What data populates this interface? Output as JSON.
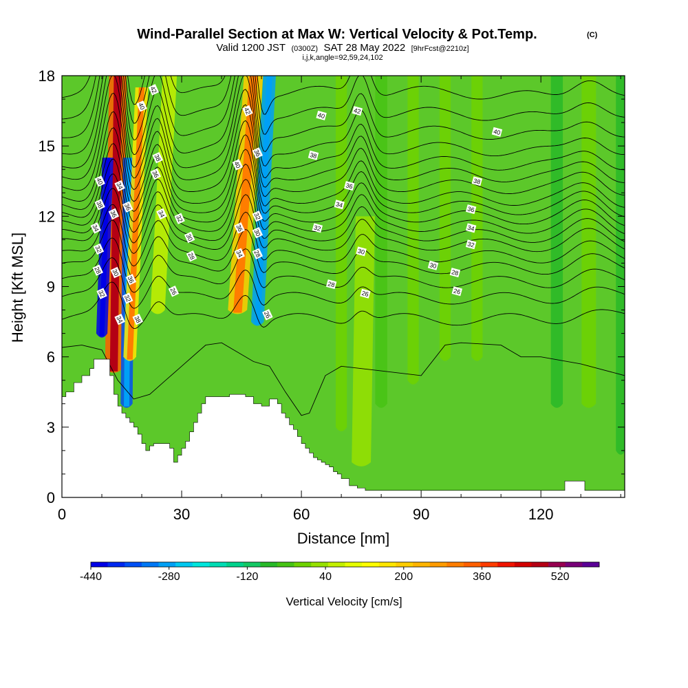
{
  "chart_data": {
    "type": "heatmap",
    "title": "Wind-Parallel Section at Max W: Vertical Velocity & Pot.Temp.",
    "title_mark": "(C)",
    "subtitle_valid": "Valid 1200 JST",
    "subtitle_utc": "(0300Z)",
    "subtitle_date": "SAT 28 May 2022",
    "subtitle_fcst": "[9hrFcst@2210z]",
    "subtitle_indices": "i,j,k,angle=92,59,24,102",
    "xlabel": "Distance [nm]",
    "ylabel": "Height [Kft MSL]",
    "xlim": [
      0,
      141
    ],
    "ylim": [
      0,
      18
    ],
    "x_ticks": [
      0,
      30,
      60,
      90,
      120
    ],
    "y_ticks": [
      0,
      3,
      6,
      9,
      12,
      15,
      18
    ],
    "x_tick_labels": [
      "0",
      "30",
      "60",
      "90",
      "120"
    ],
    "y_tick_labels": [
      "0",
      "3",
      "6",
      "9",
      "12",
      "15",
      "18"
    ],
    "colorbar": {
      "title": "Vertical Velocity [cm/s]",
      "labels": [
        "-440",
        "-280",
        "-120",
        "40",
        "200",
        "360",
        "520"
      ],
      "label_values": [
        -440,
        -280,
        -120,
        40,
        200,
        360,
        520
      ],
      "min": -440,
      "max": 600,
      "step": 40,
      "colors": [
        "#0000e6",
        "#0028f0",
        "#0050f5",
        "#0078f5",
        "#00a0f5",
        "#00c8f0",
        "#00e6dc",
        "#00dcb4",
        "#00d28c",
        "#14c864",
        "#28b928",
        "#46c314",
        "#6ed200",
        "#96e100",
        "#c3f000",
        "#e6ff00",
        "#ffff00",
        "#ffe600",
        "#ffcd00",
        "#ffb400",
        "#ff9b00",
        "#ff7d00",
        "#ff5f00",
        "#ff3c00",
        "#f01400",
        "#d20000",
        "#b40014",
        "#960050",
        "#780078",
        "#5a0096"
      ]
    },
    "terrain_profile": {
      "x": [
        0,
        1,
        3,
        5,
        7,
        8,
        10,
        12,
        13,
        14,
        15,
        16,
        17,
        18,
        19,
        20,
        21,
        22,
        23,
        24,
        25,
        26,
        27,
        28,
        29,
        30,
        31,
        32,
        33,
        34,
        35,
        36,
        40,
        42,
        44,
        46,
        48,
        50,
        52,
        54,
        55,
        56,
        57,
        58,
        59,
        60,
        61,
        62,
        63,
        64,
        65,
        66,
        67,
        68,
        69,
        70,
        72,
        74,
        76,
        78,
        80,
        82,
        84,
        86,
        88,
        90,
        92,
        94,
        96,
        98,
        100,
        102,
        105,
        110,
        115,
        120,
        125,
        126,
        130,
        131,
        135,
        141
      ],
      "y": [
        4.3,
        4.5,
        4.9,
        5.2,
        5.5,
        5.9,
        5.9,
        5.2,
        4.4,
        3.9,
        3.6,
        3.4,
        3.2,
        3.0,
        2.7,
        2.3,
        2.0,
        2.2,
        2.3,
        2.3,
        2.3,
        2.3,
        2.1,
        1.5,
        1.8,
        2.1,
        2.4,
        2.8,
        3.2,
        3.6,
        4.0,
        4.3,
        4.3,
        4.4,
        4.4,
        4.3,
        4.0,
        3.9,
        4.2,
        4.0,
        3.6,
        3.4,
        3.1,
        2.9,
        2.6,
        2.3,
        2.1,
        1.9,
        1.7,
        1.6,
        1.5,
        1.4,
        1.3,
        1.1,
        1.0,
        0.8,
        0.5,
        0.4,
        0.3,
        0.3,
        0.3,
        0.3,
        0.3,
        0.3,
        0.3,
        0.3,
        0.3,
        0.3,
        0.3,
        0.3,
        0.3,
        0.3,
        0.3,
        0.3,
        0.3,
        0.3,
        0.3,
        0.7,
        0.7,
        0.3,
        0.3,
        0.3
      ]
    },
    "vertical_velocity_features": [
      {
        "x_top": 14,
        "x_bottom": 13,
        "y_top": 18,
        "y_bottom": 5.5,
        "width": 2.2,
        "value": 440
      },
      {
        "x_top": 11.5,
        "x_bottom": 10,
        "y_top": 14.5,
        "y_bottom": 7,
        "width": 1.4,
        "value": -440
      },
      {
        "x_top": 16.8,
        "x_bottom": 16.2,
        "y_top": 14.5,
        "y_bottom": 4,
        "width": 1.5,
        "value": -360
      },
      {
        "x_top": 20,
        "x_bottom": 17,
        "y_top": 17.5,
        "y_bottom": 6,
        "width": 1.6,
        "value": 240
      },
      {
        "x_top": 48,
        "x_bottom": 44,
        "y_top": 18,
        "y_bottom": 8,
        "width": 2.4,
        "value": 280
      },
      {
        "x_top": 52,
        "x_bottom": 49,
        "y_top": 18,
        "y_bottom": 7.5,
        "width": 1.6,
        "value": -280
      },
      {
        "x_top": 27,
        "x_bottom": 24,
        "y_top": 18,
        "y_bottom": 8,
        "width": 1.8,
        "value": 120
      },
      {
        "x_top": 76,
        "x_bottom": 75,
        "y_top": 12,
        "y_bottom": 1.5,
        "width": 2.4,
        "value": 80
      },
      {
        "x_top": 80,
        "x_bottom": 80,
        "y_top": 18,
        "y_bottom": 4,
        "width": 1.5,
        "value": 0
      },
      {
        "x_top": 70,
        "x_bottom": 70,
        "y_top": 18,
        "y_bottom": 3,
        "width": 1.4,
        "value": 40
      },
      {
        "x_top": 88,
        "x_bottom": 88,
        "y_top": 18,
        "y_bottom": 5,
        "width": 1.4,
        "value": 40
      },
      {
        "x_top": 96,
        "x_bottom": 96,
        "y_top": 18,
        "y_bottom": 6,
        "width": 1.4,
        "value": 40
      },
      {
        "x_top": 104,
        "x_bottom": 104,
        "y_top": 18,
        "y_bottom": 6,
        "width": 1.4,
        "value": 40
      },
      {
        "x_top": 124,
        "x_bottom": 124,
        "y_top": 18,
        "y_bottom": 4,
        "width": 1.5,
        "value": -40
      },
      {
        "x_top": 132,
        "x_bottom": 132,
        "y_top": 18,
        "y_bottom": 4,
        "width": 1.8,
        "value": 40
      },
      {
        "x_top": 140,
        "x_bottom": 140,
        "y_top": 18,
        "y_bottom": 2,
        "width": 1.2,
        "value": -40
      }
    ],
    "theta_contour_labels": [
      {
        "text": "42",
        "x": 23,
        "y": 17.4
      },
      {
        "text": "40",
        "x": 20,
        "y": 16.7
      },
      {
        "text": "38",
        "x": 24,
        "y": 14.5
      },
      {
        "text": "36",
        "x": 23.5,
        "y": 13.8
      },
      {
        "text": "34",
        "x": 25,
        "y": 12.1
      },
      {
        "text": "32",
        "x": 29.5,
        "y": 11.9
      },
      {
        "text": "30",
        "x": 32,
        "y": 11.1
      },
      {
        "text": "28",
        "x": 32.5,
        "y": 10.3
      },
      {
        "text": "26",
        "x": 28,
        "y": 8.8
      },
      {
        "text": "40",
        "x": 9.5,
        "y": 13.5
      },
      {
        "text": "38",
        "x": 9.5,
        "y": 12.5
      },
      {
        "text": "34",
        "x": 8.5,
        "y": 11.5
      },
      {
        "text": "32",
        "x": 9.2,
        "y": 10.6
      },
      {
        "text": "28",
        "x": 9,
        "y": 9.7
      },
      {
        "text": "32",
        "x": 10,
        "y": 8.7
      },
      {
        "text": "34",
        "x": 14.5,
        "y": 13.3
      },
      {
        "text": "36",
        "x": 13,
        "y": 12.1
      },
      {
        "text": "30",
        "x": 13.5,
        "y": 9.6
      },
      {
        "text": "36",
        "x": 16.5,
        "y": 12.4
      },
      {
        "text": "36",
        "x": 17.3,
        "y": 9.3
      },
      {
        "text": "32",
        "x": 16.5,
        "y": 8.5
      },
      {
        "text": "34",
        "x": 14.5,
        "y": 7.6
      },
      {
        "text": "38",
        "x": 19,
        "y": 7.6
      },
      {
        "text": "42",
        "x": 46.5,
        "y": 16.5
      },
      {
        "text": "40",
        "x": 44,
        "y": 14.2
      },
      {
        "text": "36",
        "x": 49,
        "y": 14.7
      },
      {
        "text": "32",
        "x": 49,
        "y": 12
      },
      {
        "text": "36",
        "x": 44.5,
        "y": 11.5
      },
      {
        "text": "30",
        "x": 49,
        "y": 11.3
      },
      {
        "text": "34",
        "x": 44.5,
        "y": 10.4
      },
      {
        "text": "28",
        "x": 49,
        "y": 10.4
      },
      {
        "text": "26",
        "x": 51.5,
        "y": 7.8
      },
      {
        "text": "42",
        "x": 74,
        "y": 16.5
      },
      {
        "text": "40",
        "x": 65,
        "y": 16.3
      },
      {
        "text": "38",
        "x": 63,
        "y": 14.6
      },
      {
        "text": "36",
        "x": 72,
        "y": 13.3
      },
      {
        "text": "34",
        "x": 69.5,
        "y": 12.5
      },
      {
        "text": "32",
        "x": 64,
        "y": 11.5
      },
      {
        "text": "30",
        "x": 75,
        "y": 10.5
      },
      {
        "text": "28",
        "x": 67.5,
        "y": 9.1
      },
      {
        "text": "26",
        "x": 76,
        "y": 8.7
      },
      {
        "text": "40",
        "x": 109,
        "y": 15.6
      },
      {
        "text": "38",
        "x": 104,
        "y": 13.5
      },
      {
        "text": "36",
        "x": 102.5,
        "y": 12.3
      },
      {
        "text": "34",
        "x": 102.5,
        "y": 11.5
      },
      {
        "text": "32",
        "x": 102.5,
        "y": 10.8
      },
      {
        "text": "30",
        "x": 93,
        "y": 9.9
      },
      {
        "text": "28",
        "x": 98.5,
        "y": 9.6
      },
      {
        "text": "26",
        "x": 99,
        "y": 8.8
      }
    ],
    "theta_contour_levels": [
      26,
      27,
      28,
      29,
      30,
      31,
      32,
      33,
      34,
      35,
      36,
      37,
      38,
      39,
      40,
      41,
      42,
      43
    ],
    "theta_contour_base_heights": [
      7.6,
      8.5,
      9.2,
      9.8,
      10.3,
      10.8,
      11.2,
      11.6,
      12.0,
      12.4,
      12.8,
      13.3,
      13.8,
      14.3,
      14.9,
      15.6,
      16.4,
      17.3
    ]
  }
}
